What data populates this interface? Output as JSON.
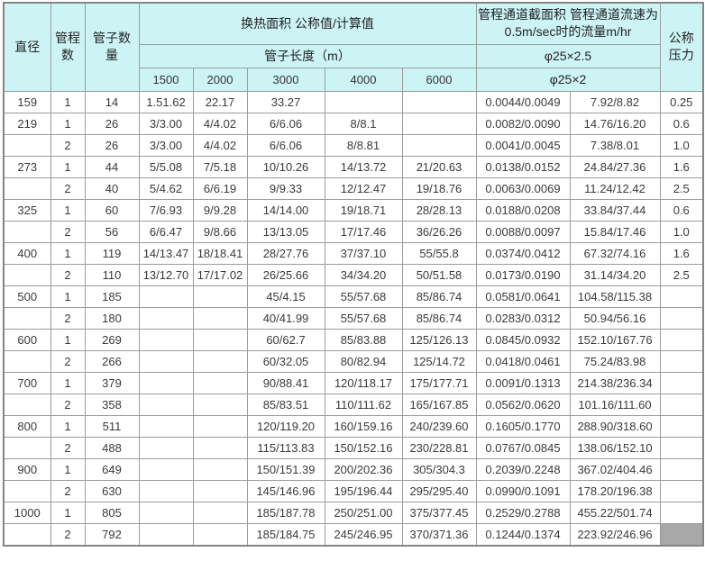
{
  "colors": {
    "header_bg": "#cdf4f5",
    "grid_border": "#9b9b9b",
    "outer_border": "#848484",
    "text": "#3a3a3a",
    "selected_cell_bg": "#a8a8a8"
  },
  "table": {
    "header": {
      "diameter": "直径",
      "passes": "管程数",
      "tube_count": "管子数量",
      "area_title": "换热面积 公称值/计算值",
      "tube_length_title": "管子长度（m）",
      "lengths": [
        "1500",
        "2000",
        "3000",
        "4000",
        "6000"
      ],
      "channel_title": "管程通道截面积 管程通道流速为\n0.5m/sec时的流量m/hr",
      "phi_row1": "φ25×2.5",
      "phi_row2": "φ25×2",
      "pressure": "公称压力"
    },
    "col_keys": [
      "diameter",
      "passes",
      "tube-count",
      "len-1500",
      "len-2000",
      "len-3000",
      "len-4000",
      "len-6000",
      "section-area",
      "flow-rate",
      "nominal-pressure"
    ],
    "rows": [
      [
        "159",
        "1",
        "14",
        "1.51.62",
        "22.17",
        "33.27",
        "",
        "",
        "0.0044/0.0049",
        "7.92/8.82",
        "0.25"
      ],
      [
        "219",
        "1",
        "26",
        "3/3.00",
        "4/4.02",
        "6/6.06",
        "8/8.1",
        "",
        "0.0082/0.0090",
        "14.76/16.20",
        "0.6"
      ],
      [
        "",
        "2",
        "26",
        "3/3.00",
        "4/4.02",
        "6/6.06",
        "8/8.81",
        "",
        "0.0041/0.0045",
        "7.38/8.01",
        "1.0"
      ],
      [
        "273",
        "1",
        "44",
        "5/5.08",
        "7/5.18",
        "10/10.26",
        "14/13.72",
        "21/20.63",
        "0.0138/0.0152",
        "24.84/27.36",
        "1.6"
      ],
      [
        "",
        "2",
        "40",
        "5/4.62",
        "6/6.19",
        "9/9.33",
        "12/12.47",
        "19/18.76",
        "0.0063/0.0069",
        "11.24/12.42",
        "2.5"
      ],
      [
        "325",
        "1",
        "60",
        "7/6.93",
        "9/9.28",
        "14/14.00",
        "19/18.71",
        "28/28.13",
        "0.0188/0.0208",
        "33.84/37.44",
        "0.6"
      ],
      [
        "",
        "2",
        "56",
        "6/6.47",
        "9/8.66",
        "13/13.05",
        "17/17.46",
        "36/26.26",
        "0.0088/0.0097",
        "15.84/17.46",
        "1.0"
      ],
      [
        "400",
        "1",
        "119",
        "14/13.47",
        "18/18.41",
        "28/27.76",
        "37/37.10",
        "55/55.8",
        "0.0374/0.0412",
        "67.32/74.16",
        "1.6"
      ],
      [
        "",
        "2",
        "110",
        "13/12.70",
        "17/17.02",
        "26/25.66",
        "34/34.20",
        "50/51.58",
        "0.0173/0.0190",
        "31.14/34.20",
        "2.5"
      ],
      [
        "500",
        "1",
        "185",
        "",
        "",
        "45/4.15",
        "55/57.68",
        "85/86.74",
        "0.0581/0.0641",
        "104.58/115.38",
        ""
      ],
      [
        "",
        "2",
        "180",
        "",
        "",
        "40/41.99",
        "55/57.68",
        "85/86.74",
        "0.0283/0.0312",
        "50.94/56.16",
        ""
      ],
      [
        "600",
        "1",
        "269",
        "",
        "",
        "60/62.7",
        "85/83.88",
        "125/126.13",
        "0.0845/0.0932",
        "152.10/167.76",
        ""
      ],
      [
        "",
        "2",
        "266",
        "",
        "",
        "60/32.05",
        "80/82.94",
        "125/14.72",
        "0.0418/0.0461",
        "75.24/83.98",
        ""
      ],
      [
        "700",
        "1",
        "379",
        "",
        "",
        "90/88.41",
        "120/118.17",
        "175/177.71",
        "0.0091/0.1313",
        "214.38/236.34",
        ""
      ],
      [
        "",
        "2",
        "358",
        "",
        "",
        "85/83.51",
        "110/111.62",
        "165/167.85",
        "0.0562/0.0620",
        "101.16/111.60",
        ""
      ],
      [
        "800",
        "1",
        "511",
        "",
        "",
        "120/119.20",
        "160/159.16",
        "240/239.60",
        "0.1605/0.1770",
        "288.90/318.60",
        ""
      ],
      [
        "",
        "2",
        "488",
        "",
        "",
        "115/113.83",
        "150/152.16",
        "230/228.81",
        "0.0767/0.0845",
        "138.06/152.10",
        ""
      ],
      [
        "900",
        "1",
        "649",
        "",
        "",
        "150/151.39",
        "200/202.36",
        "305/304.3",
        "0.2039/0.2248",
        "367.02/404.46",
        ""
      ],
      [
        "",
        "2",
        "630",
        "",
        "",
        "145/146.96",
        "195/196.44",
        "295/295.40",
        "0.0990/0.1091",
        "178.20/196.38",
        ""
      ],
      [
        "1000",
        "1",
        "805",
        "",
        "",
        "185/187.78",
        "250/251.00",
        "375/377.45",
        "0.2529/0.2788",
        "455.22/501.74",
        ""
      ],
      [
        "",
        "2",
        "792",
        "",
        "",
        "185/184.75",
        "245/246.95",
        "370/371.36",
        "0.1244/0.1374",
        "223.92/246.96",
        ""
      ]
    ],
    "selected_cell": {
      "row_index": 20,
      "col_index": 10
    }
  }
}
